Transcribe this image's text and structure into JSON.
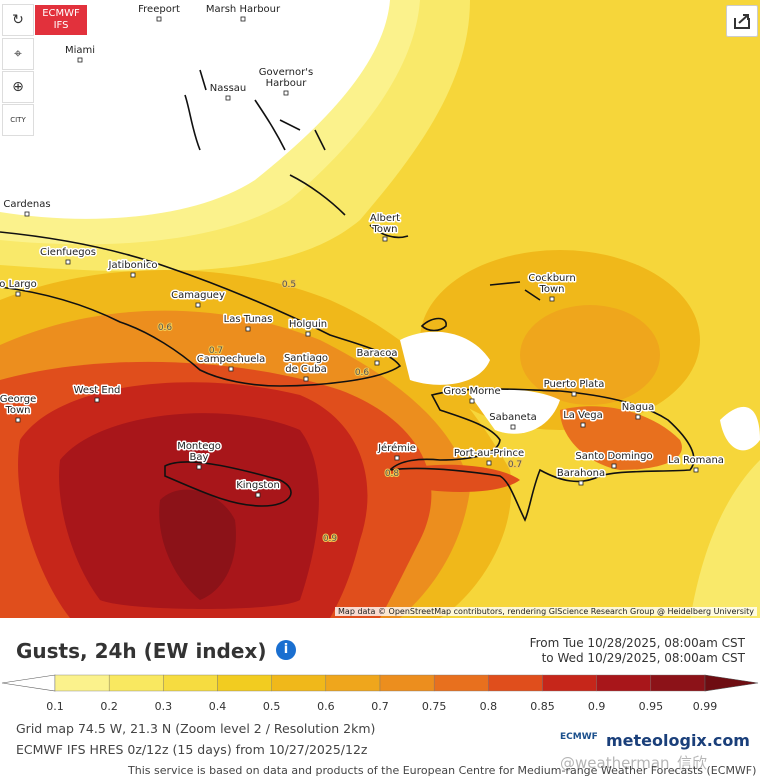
{
  "toolbar": {
    "badge": [
      "ECMWF",
      "IFS"
    ],
    "city_button": "CITY"
  },
  "map": {
    "cities": [
      [
        "Freeport"
      ],
      [
        "Marsh Harbour"
      ],
      [
        "Miami"
      ],
      [
        "Governor's",
        "Harbour"
      ],
      [
        "Nassau"
      ],
      [
        "Cardenas"
      ],
      [
        "Cienfuegos"
      ],
      [
        "Jatibonico"
      ],
      [
        "o Largo"
      ],
      [
        "Camaguey"
      ],
      [
        "Las Tunas"
      ],
      [
        "Holguin"
      ],
      [
        "Campechuela"
      ],
      [
        "Santiago",
        "de Cuba"
      ],
      [
        "Baracoa"
      ],
      [
        "Albert",
        "Town"
      ],
      [
        "Cockburn",
        "Town"
      ],
      [
        "Puerto Plata"
      ],
      [
        "Gros Morne"
      ],
      [
        "Sabaneta"
      ],
      [
        "La Vega"
      ],
      [
        "Nagua"
      ],
      [
        "Jérémie"
      ],
      [
        "Port-au-Prince"
      ],
      [
        "Santo Domingo"
      ],
      [
        "La Romana"
      ],
      [
        "Barahona"
      ],
      [
        "Montego",
        "Bay"
      ],
      [
        "Kingston"
      ],
      [
        "West End"
      ],
      [
        "George",
        "Town"
      ]
    ],
    "contour_labels": [
      "0.5",
      "0.6",
      "0.7",
      "0.6",
      "0.7",
      "0.8",
      "0.9"
    ],
    "attribution": "Map data © OpenStreetMap contributors, rendering GIScience Research Group @ Heidelberg University"
  },
  "panel": {
    "title": "Gusts, 24h (EW index)",
    "from": "From Tue 10/28/2025, 08:00am CST",
    "to": "to Wed 10/29/2025, 08:00am CST",
    "legend": {
      "ticks": [
        "0.1",
        "0.2",
        "0.3",
        "0.4",
        "0.5",
        "0.6",
        "0.7",
        "0.75",
        "0.8",
        "0.85",
        "0.9",
        "0.95",
        "0.99"
      ],
      "colors": [
        "#ffffff",
        "#fbf28c",
        "#f9e860",
        "#f6dc40",
        "#f2cc20",
        "#f0b81a",
        "#efa61c",
        "#ec8e1e",
        "#e8701e",
        "#e04e1c",
        "#c6261a",
        "#a8161a",
        "#8c1218",
        "#6e0d12"
      ]
    },
    "grid_info": "Grid map 74.5 W, 21.3 N (Zoom level 2 / Resolution 2km)",
    "model_info": "ECMWF IFS HRES 0z/12z (15 days) from 10/27/2025/12z",
    "logos": [
      "ECMWF",
      "meteologix.com"
    ],
    "footer": "This service is based on data and products of the European Centre for Medium-range Weather Forecasts (ECMWF)",
    "watermark": "@weatherman_信欣"
  }
}
